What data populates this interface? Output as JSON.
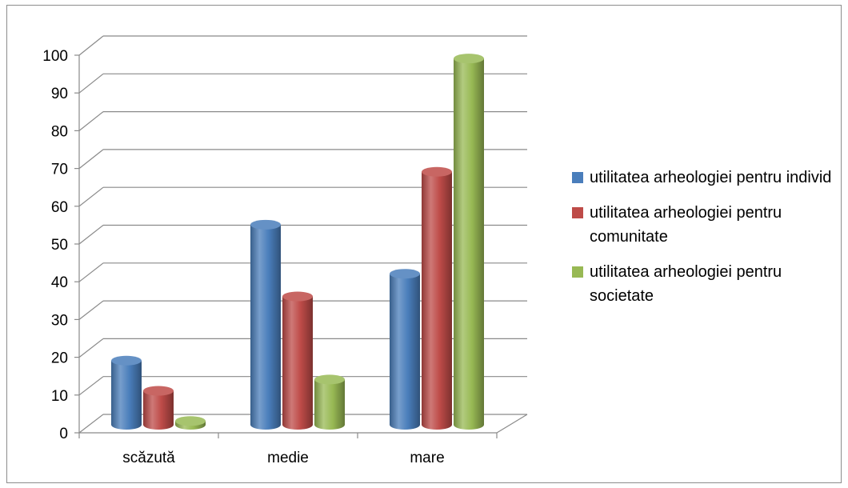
{
  "chart_data": {
    "type": "bar",
    "title": "",
    "xlabel": "",
    "ylabel": "",
    "categories": [
      "scăzută",
      "medie",
      "mare"
    ],
    "ylim": [
      0,
      100
    ],
    "yticks": [
      0,
      10,
      20,
      30,
      40,
      50,
      60,
      70,
      80,
      90,
      100
    ],
    "grid": true,
    "legend_position": "right",
    "series": [
      {
        "name": "utilitatea arheologiei pentru individ",
        "values": [
          17,
          53,
          40
        ],
        "color": "#4a7ebb"
      },
      {
        "name": "utilitatea arheologiei pentru comunitate",
        "values": [
          9,
          34,
          67
        ],
        "color": "#be4b48"
      },
      {
        "name": "utilitatea arheologiei pentru societate",
        "values": [
          1,
          12,
          97
        ],
        "color": "#98b954"
      }
    ]
  }
}
